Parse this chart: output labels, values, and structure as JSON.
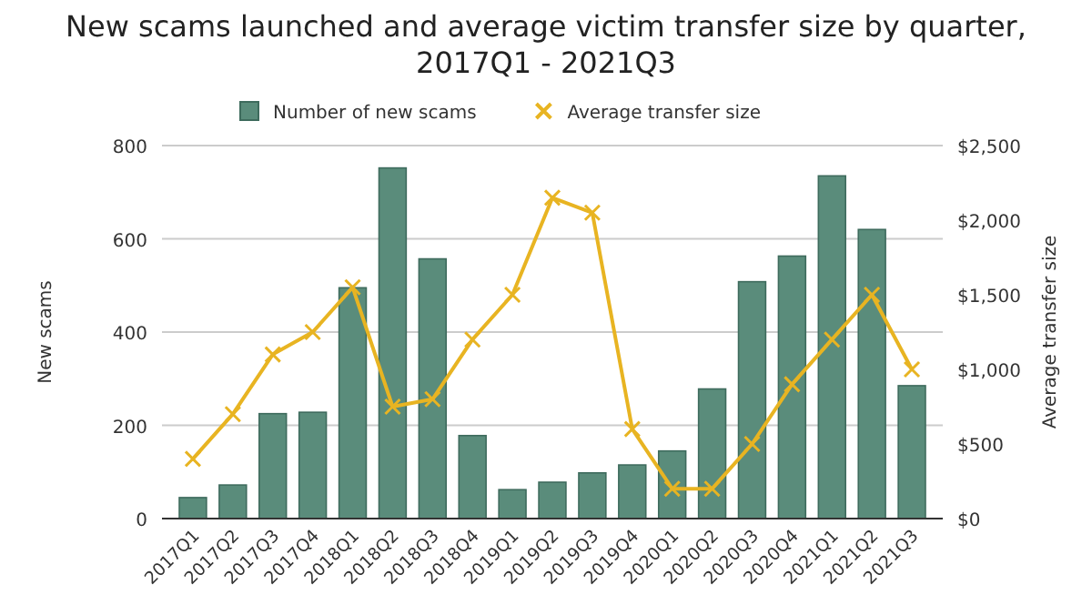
{
  "chart_data": {
    "type": "bar",
    "title": "New scams launched and average victim transfer size by quarter, 2017Q1 - 2021Q3",
    "ylabel": "New scams",
    "y2label": "Average transfer size",
    "categories": [
      "2017Q1",
      "2017Q2",
      "2017Q3",
      "2017Q4",
      "2018Q1",
      "2018Q2",
      "2018Q3",
      "2018Q4",
      "2019Q1",
      "2019Q2",
      "2019Q3",
      "2019Q4",
      "2020Q1",
      "2020Q2",
      "2020Q3",
      "2020Q4",
      "2021Q1",
      "2021Q2",
      "2021Q3"
    ],
    "series": [
      {
        "name": "Number of new scams",
        "color": "#5a8c7b",
        "values": [
          45,
          72,
          225,
          228,
          495,
          752,
          557,
          178,
          62,
          78,
          98,
          115,
          145,
          278,
          508,
          563,
          735,
          620,
          285
        ]
      },
      {
        "name": "Average transfer size",
        "type": "line",
        "axis": "y2",
        "color": "#e8b422",
        "marker": "cross",
        "values": [
          400,
          700,
          1100,
          1250,
          1550,
          750,
          800,
          1200,
          1500,
          2150,
          2050,
          600,
          200,
          200,
          500,
          900,
          1200,
          1500,
          1000
        ]
      }
    ],
    "ylim": [
      0,
      800
    ],
    "yticks": [
      0,
      200,
      400,
      600,
      800
    ],
    "y2lim": [
      0,
      2500
    ],
    "y2ticks": [
      {
        "value": 0,
        "label": "$0"
      },
      {
        "value": 500,
        "label": "$500"
      },
      {
        "value": 1000,
        "label": "$1,000"
      },
      {
        "value": 1500,
        "label": "$1,500"
      },
      {
        "value": 2000,
        "label": "$2,000"
      },
      {
        "value": 2500,
        "label": "$2,500"
      }
    ],
    "grid": "y",
    "legend": "top"
  }
}
